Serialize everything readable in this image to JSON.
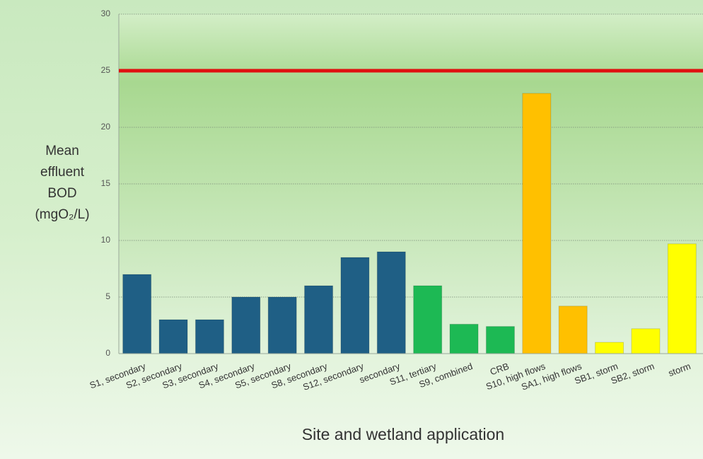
{
  "chart_data": {
    "type": "bar",
    "x_label": "Site and wetland application",
    "y_label": [
      "Mean",
      "effluent",
      "BOD",
      "(mgO₂/L)"
    ],
    "categories": [
      "S1, secondary",
      "S2, secondary",
      "S3, secondary",
      "S4, secondary",
      "S5, secondary",
      "S8, secondary",
      "S12, secondary",
      "secondary",
      "S11, tertiary",
      "S9, combined",
      "CRB",
      "S10, high flows",
      "SA1, high flows",
      "SB1, storm",
      "SB2, storm",
      "storm"
    ],
    "values": [
      7,
      3,
      3,
      5,
      5,
      6,
      8.5,
      9,
      6,
      2.6,
      2.4,
      23,
      4.2,
      1,
      2.2,
      9.7
    ],
    "colors": [
      "#1f5f85",
      "#1f5f85",
      "#1f5f85",
      "#1f5f85",
      "#1f5f85",
      "#1f5f85",
      "#1f5f85",
      "#1f5f85",
      "#1db954",
      "#1db954",
      "#1db954",
      "#ffc000",
      "#ffc000",
      "#ffff00",
      "#ffff00",
      "#ffff00"
    ],
    "reference_line": {
      "value": 25,
      "color": "#e01010"
    },
    "ylim": [
      0,
      30
    ],
    "yticks": [
      0,
      5,
      10,
      15,
      20,
      25,
      30
    ],
    "grid": true
  }
}
